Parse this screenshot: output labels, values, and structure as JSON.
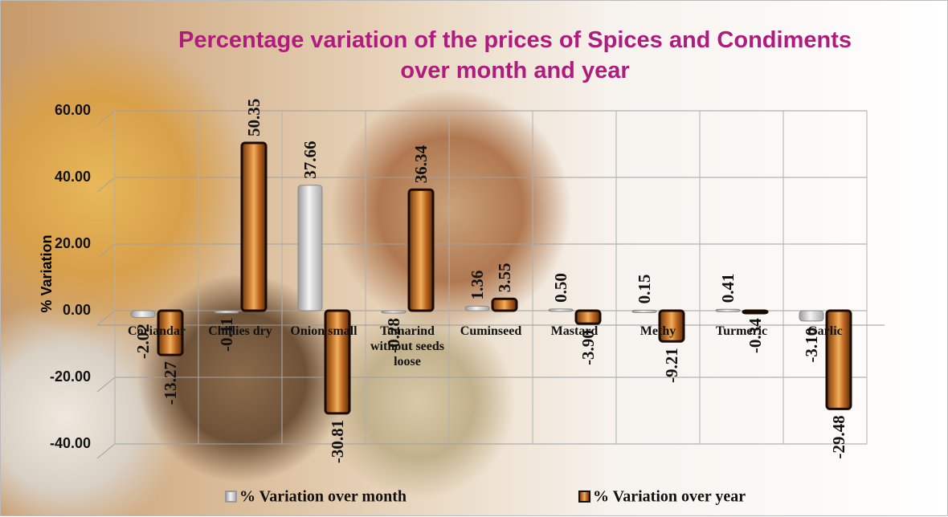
{
  "chart_data": {
    "type": "bar",
    "title": "Percentage variation of the prices of Spices and Condiments over month and year",
    "y_label": "% Variation",
    "categories": [
      "Coriandar",
      "Chillies dry",
      "Onion small",
      "Tamarind without seeds loose",
      "Cuminseed",
      "Mastard",
      "Methy",
      "Turmeric",
      "Garlic"
    ],
    "series": [
      {
        "name": "% Variation over month",
        "color": "#d9d9d9",
        "values": [
          -2.02,
          -0.11,
          37.66,
          -0.28,
          1.36,
          0.5,
          0.15,
          0.41,
          -3.1
        ],
        "value_labels": [
          "-2.02",
          "-0.11",
          "37.66",
          "-0.28",
          "1.36",
          "0.50",
          "0.15",
          "0.41",
          "-3.10"
        ]
      },
      {
        "name": "% Variation over year",
        "color": "#c26a22",
        "values": [
          -13.27,
          50.35,
          -30.81,
          36.34,
          3.55,
          -3.9,
          -9.21,
          -0.34,
          -29.48
        ],
        "value_labels": [
          "-13.27",
          "50.35",
          "-30.81",
          "36.34",
          "3.55",
          "-3.90",
          "-9.21",
          "-0.34",
          "-29.48"
        ]
      }
    ],
    "ylim": [
      -40,
      60
    ],
    "yticks": [
      {
        "value": -40,
        "label": "-40.00"
      },
      {
        "value": -20,
        "label": "-20.00"
      },
      {
        "value": 0,
        "label": "0.00"
      },
      {
        "value": 20,
        "label": "20.00"
      },
      {
        "value": 40,
        "label": "40.00"
      },
      {
        "value": 60,
        "label": "60.00"
      }
    ],
    "grid": true,
    "legend": "bottom"
  }
}
